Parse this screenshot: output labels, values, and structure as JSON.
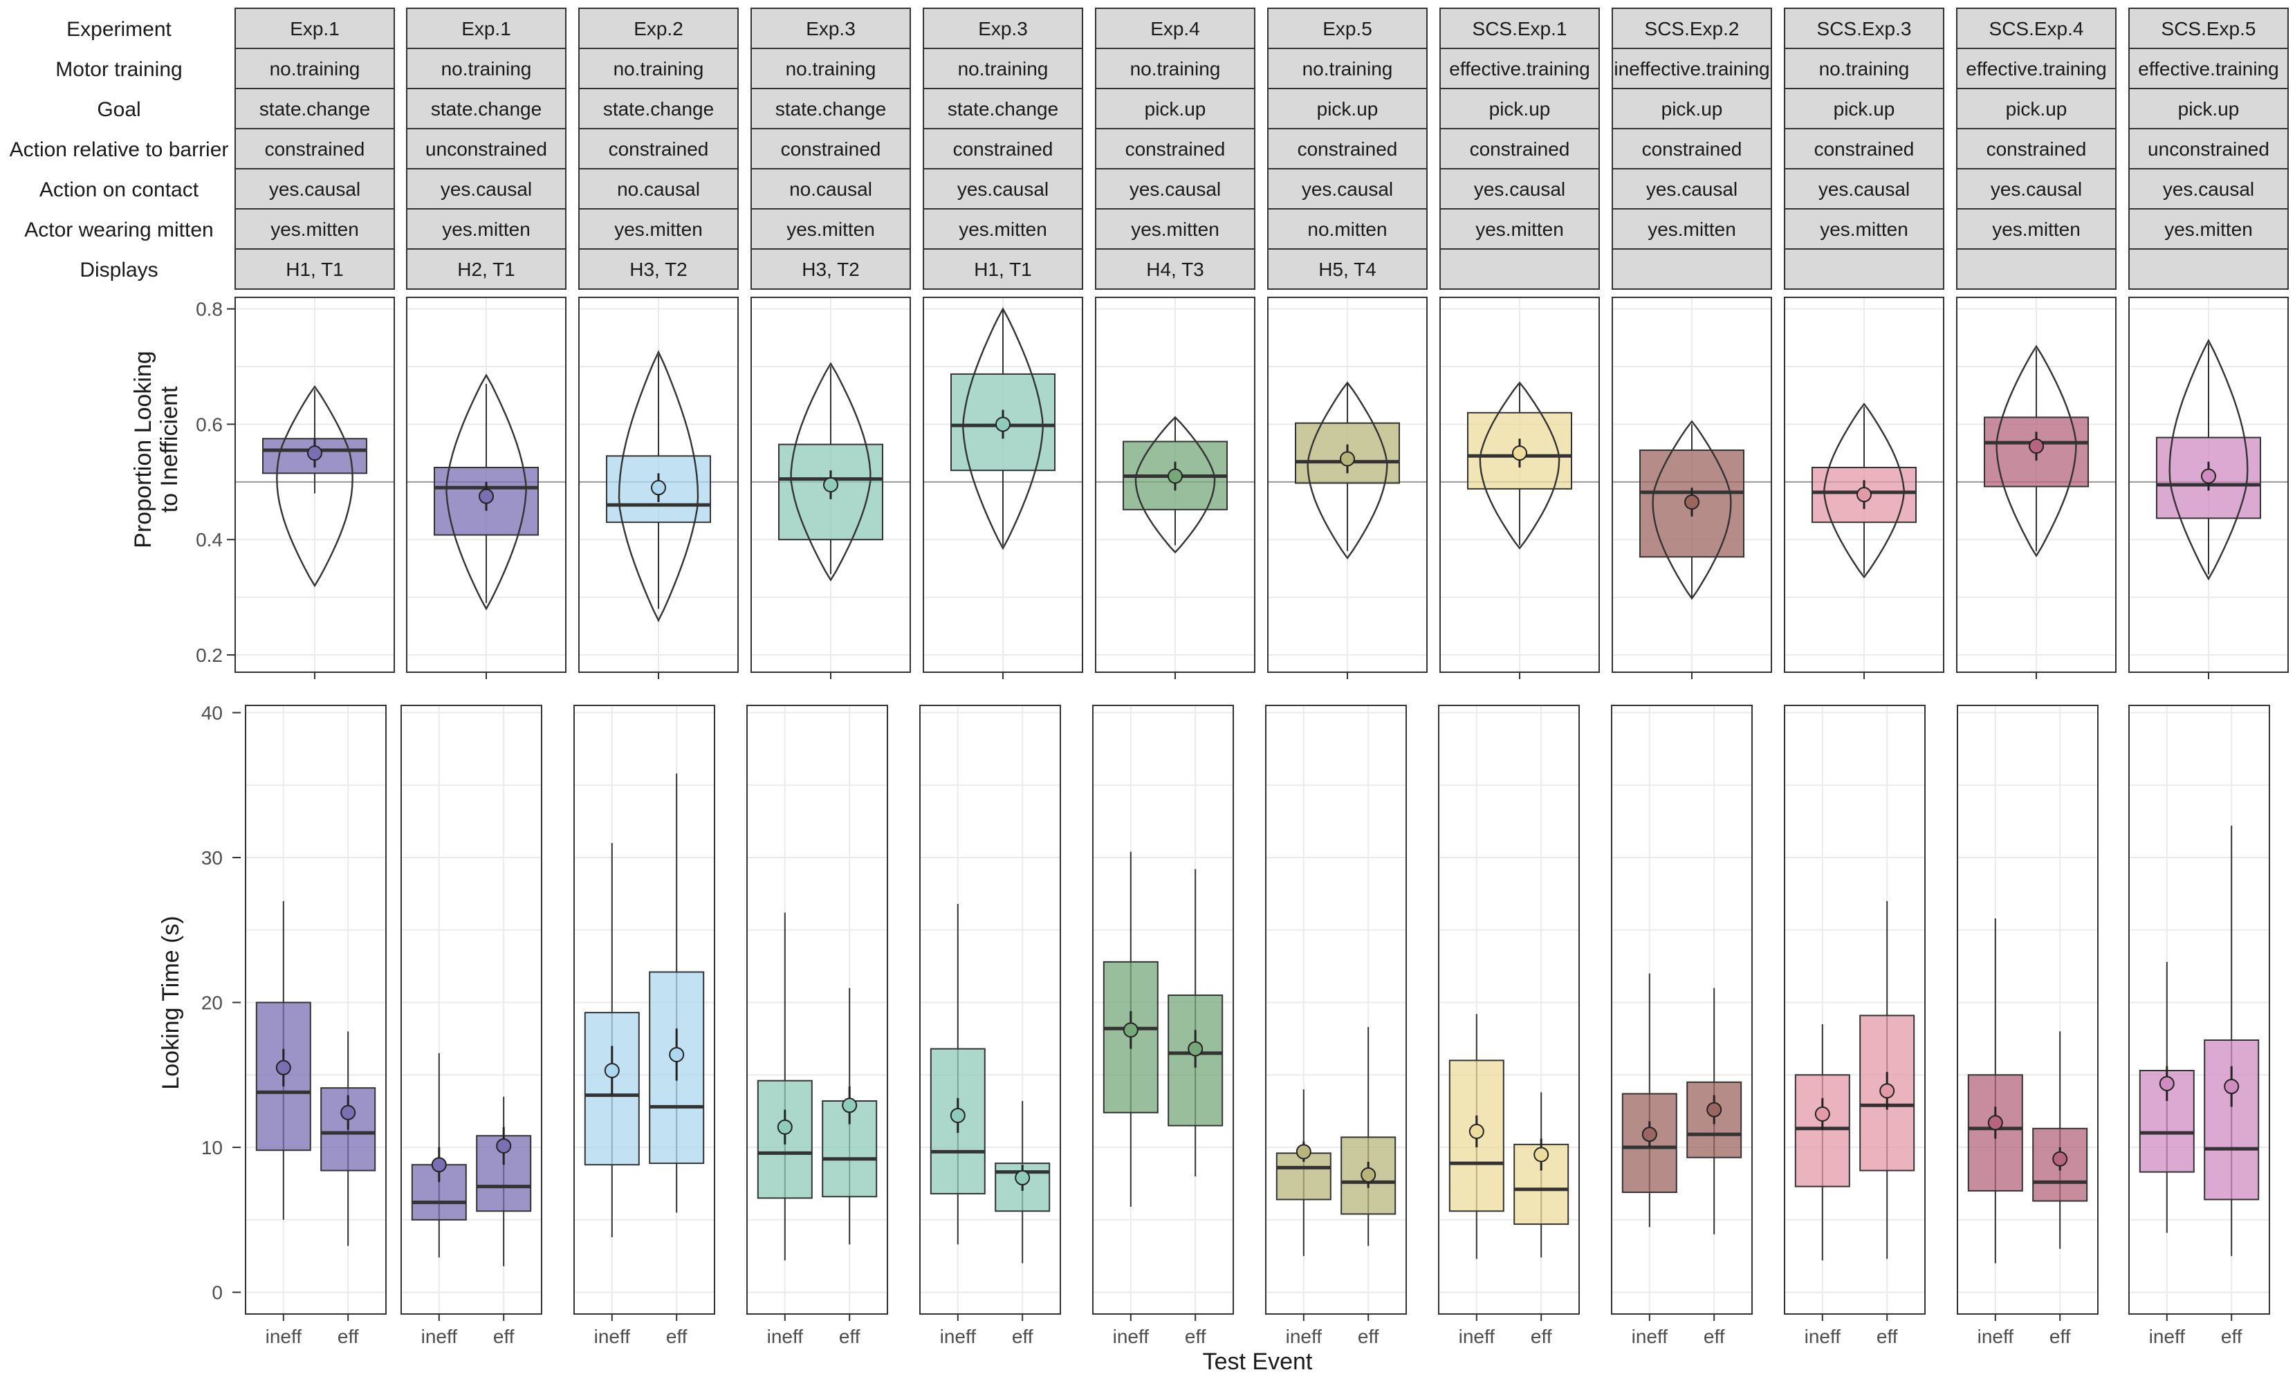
{
  "figure": {
    "row_labels": [
      "Experiment",
      "Motor training",
      "Goal",
      "Action relative to barrier",
      "Action on contact",
      "Actor wearing mitten",
      "Displays"
    ],
    "top_ylabel": [
      "Proportion Looking",
      "to Inefficient"
    ],
    "bottom_ylabel": "Looking Time (s)",
    "xlabel": "Test Event"
  },
  "chart_data": [
    {
      "type": "table",
      "rows": [
        "Experiment",
        "Motor training",
        "Goal",
        "Action relative to barrier",
        "Action on contact",
        "Actor wearing mitten",
        "Displays"
      ],
      "columns": [
        [
          "Exp.1",
          "no.training",
          "state.change",
          "constrained",
          "yes.causal",
          "yes.mitten",
          "H1, T1"
        ],
        [
          "Exp.1",
          "no.training",
          "state.change",
          "unconstrained",
          "yes.causal",
          "yes.mitten",
          "H2, T1"
        ],
        [
          "Exp.2",
          "no.training",
          "state.change",
          "constrained",
          "no.causal",
          "yes.mitten",
          "H3, T2"
        ],
        [
          "Exp.3",
          "no.training",
          "state.change",
          "constrained",
          "no.causal",
          "yes.mitten",
          "H3, T2"
        ],
        [
          "Exp.3",
          "no.training",
          "state.change",
          "constrained",
          "yes.causal",
          "yes.mitten",
          "H1, T1"
        ],
        [
          "Exp.4",
          "no.training",
          "pick.up",
          "constrained",
          "yes.causal",
          "yes.mitten",
          "H4, T3"
        ],
        [
          "Exp.5",
          "no.training",
          "pick.up",
          "constrained",
          "yes.causal",
          "no.mitten",
          "H5, T4"
        ],
        [
          "SCS.Exp.1",
          "effective.training",
          "pick.up",
          "constrained",
          "yes.causal",
          "yes.mitten",
          ""
        ],
        [
          "SCS.Exp.2",
          "ineffective.training",
          "pick.up",
          "constrained",
          "yes.causal",
          "yes.mitten",
          ""
        ],
        [
          "SCS.Exp.3",
          "no.training",
          "pick.up",
          "constrained",
          "yes.causal",
          "yes.mitten",
          ""
        ],
        [
          "SCS.Exp.4",
          "effective.training",
          "pick.up",
          "constrained",
          "yes.causal",
          "yes.mitten",
          ""
        ],
        [
          "SCS.Exp.5",
          "effective.training",
          "pick.up",
          "unconstrained",
          "yes.causal",
          "yes.mitten",
          ""
        ]
      ]
    },
    {
      "type": "box",
      "ylabel": "Proportion Looking to Inefficient",
      "ylim": [
        0.17,
        0.82
      ],
      "yticks": [
        0.2,
        0.4,
        0.6,
        0.8
      ],
      "reference_line": 0.5,
      "grid": true,
      "colors": [
        "#7b6fb3",
        "#7b6fb3",
        "#aed8ef",
        "#8fcbba",
        "#8fcbba",
        "#77a879",
        "#b8b57c",
        "#ecdc9e",
        "#9c6660",
        "#e39aa7",
        "#b5657f",
        "#cf8cc1"
      ],
      "panels": [
        {
          "q1": 0.515,
          "median": 0.555,
          "q3": 0.575,
          "whisker_low": 0.48,
          "whisker_high": 0.66,
          "mean": 0.55,
          "violin_min": 0.32,
          "violin_max": 0.665
        },
        {
          "q1": 0.408,
          "median": 0.49,
          "q3": 0.525,
          "whisker_low": 0.29,
          "whisker_high": 0.67,
          "mean": 0.475,
          "violin_min": 0.28,
          "violin_max": 0.685
        },
        {
          "q1": 0.43,
          "median": 0.46,
          "q3": 0.545,
          "whisker_low": 0.28,
          "whisker_high": 0.72,
          "mean": 0.49,
          "violin_min": 0.26,
          "violin_max": 0.725
        },
        {
          "q1": 0.4,
          "median": 0.505,
          "q3": 0.565,
          "whisker_low": 0.34,
          "whisker_high": 0.7,
          "mean": 0.495,
          "violin_min": 0.33,
          "violin_max": 0.705
        },
        {
          "q1": 0.52,
          "median": 0.598,
          "q3": 0.687,
          "whisker_low": 0.39,
          "whisker_high": 0.8,
          "mean": 0.6,
          "violin_min": 0.385,
          "violin_max": 0.8
        },
        {
          "q1": 0.452,
          "median": 0.51,
          "q3": 0.57,
          "whisker_low": 0.39,
          "whisker_high": 0.61,
          "mean": 0.51,
          "violin_min": 0.378,
          "violin_max": 0.612
        },
        {
          "q1": 0.498,
          "median": 0.535,
          "q3": 0.602,
          "whisker_low": 0.38,
          "whisker_high": 0.67,
          "mean": 0.54,
          "violin_min": 0.368,
          "violin_max": 0.672
        },
        {
          "q1": 0.488,
          "median": 0.545,
          "q3": 0.62,
          "whisker_low": 0.39,
          "whisker_high": 0.67,
          "mean": 0.55,
          "violin_min": 0.385,
          "violin_max": 0.672
        },
        {
          "q1": 0.37,
          "median": 0.482,
          "q3": 0.555,
          "whisker_low": 0.3,
          "whisker_high": 0.6,
          "mean": 0.465,
          "violin_min": 0.298,
          "violin_max": 0.605
        },
        {
          "q1": 0.43,
          "median": 0.482,
          "q3": 0.525,
          "whisker_low": 0.34,
          "whisker_high": 0.63,
          "mean": 0.478,
          "violin_min": 0.335,
          "violin_max": 0.635
        },
        {
          "q1": 0.492,
          "median": 0.568,
          "q3": 0.612,
          "whisker_low": 0.38,
          "whisker_high": 0.73,
          "mean": 0.562,
          "violin_min": 0.372,
          "violin_max": 0.735
        },
        {
          "q1": 0.437,
          "median": 0.495,
          "q3": 0.577,
          "whisker_low": 0.34,
          "whisker_high": 0.74,
          "mean": 0.51,
          "violin_min": 0.332,
          "violin_max": 0.745
        }
      ]
    },
    {
      "type": "box",
      "ylabel": "Looking Time (s)",
      "xlabel": "Test Event",
      "categories": [
        "ineff",
        "eff"
      ],
      "ylim": [
        -1.5,
        40.5
      ],
      "yticks": [
        0,
        10,
        20,
        30,
        40
      ],
      "grid": true,
      "panels": [
        {
          "ineff": {
            "q1": 9.8,
            "median": 13.8,
            "q3": 20.0,
            "whisker_low": 5.0,
            "whisker_high": 27.0,
            "mean": 15.5,
            "ci": [
              14.2,
              16.8
            ]
          },
          "eff": {
            "q1": 8.4,
            "median": 11.0,
            "q3": 14.1,
            "whisker_low": 3.2,
            "whisker_high": 18.0,
            "mean": 12.4,
            "ci": [
              11.2,
              13.6
            ]
          }
        },
        {
          "ineff": {
            "q1": 5.0,
            "median": 6.2,
            "q3": 8.8,
            "whisker_low": 2.4,
            "whisker_high": 16.5,
            "mean": 8.8,
            "ci": [
              7.6,
              10.0
            ]
          },
          "eff": {
            "q1": 5.6,
            "median": 7.3,
            "q3": 10.8,
            "whisker_low": 1.8,
            "whisker_high": 13.5,
            "mean": 10.1,
            "ci": [
              8.8,
              11.4
            ]
          }
        },
        {
          "ineff": {
            "q1": 8.8,
            "median": 13.6,
            "q3": 19.3,
            "whisker_low": 3.8,
            "whisker_high": 31.0,
            "mean": 15.3,
            "ci": [
              13.6,
              17.0
            ]
          },
          "eff": {
            "q1": 8.9,
            "median": 12.8,
            "q3": 22.1,
            "whisker_low": 5.5,
            "whisker_high": 35.8,
            "mean": 16.4,
            "ci": [
              14.6,
              18.2
            ]
          }
        },
        {
          "ineff": {
            "q1": 6.5,
            "median": 9.6,
            "q3": 14.6,
            "whisker_low": 2.2,
            "whisker_high": 26.2,
            "mean": 11.4,
            "ci": [
              10.2,
              12.6
            ]
          },
          "eff": {
            "q1": 6.6,
            "median": 9.2,
            "q3": 13.2,
            "whisker_low": 3.3,
            "whisker_high": 21.0,
            "mean": 12.9,
            "ci": [
              11.6,
              14.2
            ]
          }
        },
        {
          "ineff": {
            "q1": 6.8,
            "median": 9.7,
            "q3": 16.8,
            "whisker_low": 3.3,
            "whisker_high": 26.8,
            "mean": 12.2,
            "ci": [
              11.0,
              13.4
            ]
          },
          "eff": {
            "q1": 5.6,
            "median": 8.3,
            "q3": 8.9,
            "whisker_low": 2.0,
            "whisker_high": 13.2,
            "mean": 7.9,
            "ci": [
              7.0,
              8.8
            ]
          }
        },
        {
          "ineff": {
            "q1": 12.4,
            "median": 18.2,
            "q3": 22.8,
            "whisker_low": 5.9,
            "whisker_high": 30.4,
            "mean": 18.1,
            "ci": [
              16.8,
              19.4
            ]
          },
          "eff": {
            "q1": 11.5,
            "median": 16.5,
            "q3": 20.5,
            "whisker_low": 8.0,
            "whisker_high": 29.2,
            "mean": 16.8,
            "ci": [
              15.5,
              18.1
            ]
          }
        },
        {
          "ineff": {
            "q1": 6.4,
            "median": 8.6,
            "q3": 9.6,
            "whisker_low": 2.5,
            "whisker_high": 14.0,
            "mean": 9.7,
            "ci": [
              9.0,
              10.4
            ]
          },
          "eff": {
            "q1": 5.4,
            "median": 7.6,
            "q3": 10.7,
            "whisker_low": 3.2,
            "whisker_high": 18.3,
            "mean": 8.1,
            "ci": [
              7.2,
              9.0
            ]
          }
        },
        {
          "ineff": {
            "q1": 5.6,
            "median": 8.9,
            "q3": 16.0,
            "whisker_low": 2.3,
            "whisker_high": 19.2,
            "mean": 11.1,
            "ci": [
              10.0,
              12.2
            ]
          },
          "eff": {
            "q1": 4.7,
            "median": 7.1,
            "q3": 10.2,
            "whisker_low": 2.4,
            "whisker_high": 13.8,
            "mean": 9.5,
            "ci": [
              8.4,
              10.6
            ]
          }
        },
        {
          "ineff": {
            "q1": 6.9,
            "median": 10.0,
            "q3": 13.7,
            "whisker_low": 4.5,
            "whisker_high": 22.0,
            "mean": 10.9,
            "ci": [
              10.0,
              11.8
            ]
          },
          "eff": {
            "q1": 9.3,
            "median": 10.9,
            "q3": 14.5,
            "whisker_low": 4.0,
            "whisker_high": 21.0,
            "mean": 12.6,
            "ci": [
              11.6,
              13.6
            ]
          }
        },
        {
          "ineff": {
            "q1": 7.3,
            "median": 11.3,
            "q3": 15.0,
            "whisker_low": 2.2,
            "whisker_high": 18.5,
            "mean": 12.3,
            "ci": [
              11.2,
              13.4
            ]
          },
          "eff": {
            "q1": 8.4,
            "median": 12.9,
            "q3": 19.1,
            "whisker_low": 2.3,
            "whisker_high": 27.0,
            "mean": 13.9,
            "ci": [
              12.6,
              15.2
            ]
          }
        },
        {
          "ineff": {
            "q1": 7.0,
            "median": 11.3,
            "q3": 15.0,
            "whisker_low": 2.0,
            "whisker_high": 25.8,
            "mean": 11.7,
            "ci": [
              10.6,
              12.8
            ]
          },
          "eff": {
            "q1": 6.3,
            "median": 7.6,
            "q3": 11.3,
            "whisker_low": 3.0,
            "whisker_high": 18.0,
            "mean": 9.2,
            "ci": [
              8.4,
              10.0
            ]
          }
        },
        {
          "ineff": {
            "q1": 8.3,
            "median": 11.0,
            "q3": 15.3,
            "whisker_low": 4.1,
            "whisker_high": 22.8,
            "mean": 14.4,
            "ci": [
              13.2,
              15.6
            ]
          },
          "eff": {
            "q1": 6.4,
            "median": 9.9,
            "q3": 17.4,
            "whisker_low": 2.5,
            "whisker_high": 32.2,
            "mean": 14.2,
            "ci": [
              12.8,
              15.6
            ]
          }
        }
      ]
    }
  ]
}
